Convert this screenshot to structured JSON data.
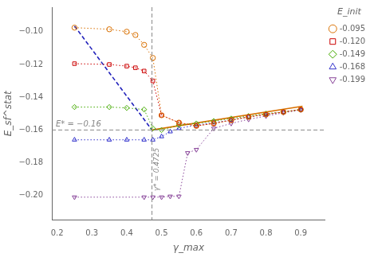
{
  "chart_data": {
    "type": "line",
    "xlabel": "γ_max",
    "ylabel": "E_sf^stat",
    "xlim": [
      0.185,
      0.97
    ],
    "ylim": [
      -0.215,
      -0.085
    ],
    "xticks": [
      0.2,
      0.3,
      0.4,
      0.5,
      0.6,
      0.7,
      0.8,
      0.9
    ],
    "yticks": [
      {
        "value": -0.1,
        "label": "−0.10"
      },
      {
        "value": -0.12,
        "label": "−0.12"
      },
      {
        "value": -0.14,
        "label": "−0.14"
      },
      {
        "value": -0.16,
        "label": "−0.16"
      },
      {
        "value": -0.18,
        "label": "−0.18"
      },
      {
        "value": -0.2,
        "label": "−0.20"
      }
    ],
    "grid": false,
    "legend": "upper right",
    "legend_title": "E_init",
    "series": [
      {
        "name": "-0.095",
        "color": "#d97000",
        "marker": "circle",
        "line_style": "dotted",
        "x": [
          0.25,
          0.35,
          0.4,
          0.425,
          0.45,
          0.475,
          0.5,
          0.55,
          0.6,
          0.65,
          0.7,
          0.75,
          0.8,
          0.85,
          0.9
        ],
        "values": [
          -0.0975,
          -0.0985,
          -0.1,
          -0.102,
          -0.108,
          -0.116,
          -0.151,
          -0.1555,
          -0.1575,
          -0.156,
          -0.154,
          -0.152,
          -0.1505,
          -0.149,
          -0.1475
        ]
      },
      {
        "name": "-0.120",
        "color": "#cc0000",
        "marker": "square",
        "line_style": "dotted",
        "x": [
          0.25,
          0.35,
          0.4,
          0.425,
          0.45,
          0.475,
          0.5,
          0.55,
          0.6,
          0.65,
          0.7,
          0.75,
          0.8,
          0.85,
          0.9
        ],
        "values": [
          -0.1195,
          -0.12,
          -0.121,
          -0.122,
          -0.124,
          -0.13,
          -0.151,
          -0.1555,
          -0.1575,
          -0.156,
          -0.154,
          -0.152,
          -0.1505,
          -0.149,
          -0.1475
        ]
      },
      {
        "name": "-0.149",
        "color": "#44aa00",
        "marker": "diamond",
        "line_style": "dotted",
        "x": [
          0.25,
          0.35,
          0.4,
          0.45,
          0.475,
          0.5,
          0.55,
          0.6,
          0.65,
          0.7,
          0.75,
          0.8,
          0.85,
          0.9
        ],
        "values": [
          -0.146,
          -0.146,
          -0.1465,
          -0.1475,
          -0.159,
          -0.16,
          -0.157,
          -0.156,
          -0.1545,
          -0.153,
          -0.1515,
          -0.15,
          -0.149,
          -0.1475
        ]
      },
      {
        "name": "-0.168",
        "color": "#3333cc",
        "marker": "triangle_up",
        "line_style": "dotted",
        "x": [
          0.25,
          0.35,
          0.4,
          0.45,
          0.475,
          0.5,
          0.525,
          0.55,
          0.6,
          0.65,
          0.7,
          0.75,
          0.8,
          0.85,
          0.9
        ],
        "values": [
          -0.166,
          -0.166,
          -0.166,
          -0.166,
          -0.166,
          -0.164,
          -0.161,
          -0.159,
          -0.157,
          -0.1555,
          -0.154,
          -0.152,
          -0.1505,
          -0.149,
          -0.1475
        ]
      },
      {
        "name": "-0.199",
        "color": "#884499",
        "marker": "triangle_down",
        "line_style": "dotted",
        "x": [
          0.25,
          0.45,
          0.475,
          0.5,
          0.525,
          0.55,
          0.575,
          0.6,
          0.65,
          0.7,
          0.75,
          0.8,
          0.85,
          0.9
        ],
        "values": [
          -0.201,
          -0.201,
          -0.201,
          -0.201,
          -0.2005,
          -0.2005,
          -0.174,
          -0.172,
          -0.159,
          -0.156,
          -0.1535,
          -0.1515,
          -0.1495,
          -0.1478
        ]
      }
    ],
    "fit_lines": [
      {
        "color": "#2222bb",
        "line_style": "dashed",
        "x": [
          0.25,
          0.4725
        ],
        "values": [
          -0.0965,
          -0.16
        ]
      },
      {
        "color": "#d97000",
        "line_style": "solid",
        "x": [
          0.4725,
          0.905
        ],
        "values": [
          -0.16,
          -0.1455
        ]
      }
    ],
    "hline": {
      "value": -0.16,
      "label": "E* = −0.16",
      "color": "#888888",
      "line_style": "dashed"
    },
    "vline": {
      "value": 0.4725,
      "label": "γ* = 0.4725",
      "color": "#888888",
      "line_style": "dashed"
    }
  }
}
